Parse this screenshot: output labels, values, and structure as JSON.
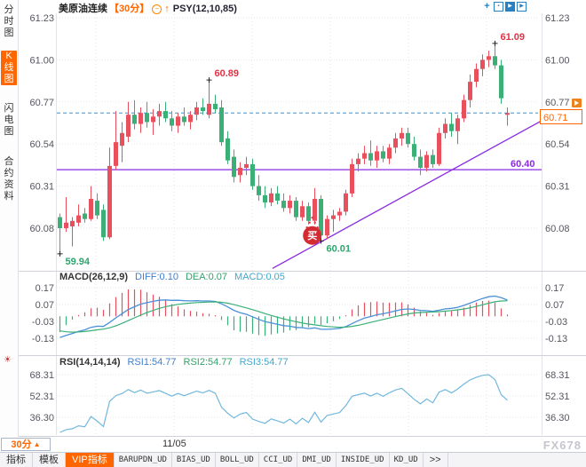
{
  "header": {
    "title": "美原油连续",
    "period": "【30分】",
    "compress_icon_glyph": "−",
    "arrow_glyph": "↑",
    "indicator_label": "PSY(12,10,85)",
    "window_icons": [
      {
        "name": "move-tool-icon",
        "glyph": "+",
        "style": "plain"
      },
      {
        "name": "window-layout-icon",
        "glyph": "▪",
        "style": "box"
      },
      {
        "name": "play-chart-icon",
        "glyph": "▶",
        "style": "filled"
      },
      {
        "name": "step-forward-icon",
        "glyph": "▶",
        "style": "box"
      }
    ]
  },
  "sidebar": {
    "items": [
      {
        "label": "分时图",
        "selected": false
      },
      {
        "label": "K线图",
        "selected": true
      },
      {
        "label": "闪电图",
        "selected": false
      },
      {
        "label": "合约资料",
        "selected": false
      }
    ]
  },
  "colors": {
    "up": "#e8505e",
    "down": "#3ab077",
    "accent": "#ff6600",
    "axis_text": "#55555f",
    "diff_line": "#4a90d9",
    "dea_line": "#3ab077",
    "rsi_line": "#72b8dc",
    "dashed_line": "#4090c8",
    "purple": "#8a2be2",
    "annotation_red": "#e03345",
    "annotation_green": "#2fa56e",
    "marker": "#222222",
    "grid": "#e7e7ee",
    "separator": "#cfd2d8",
    "blue_icon": "#2a7fc0",
    "watermark": "#c6c6ce"
  },
  "chart_data": {
    "type": "candlestick",
    "title": "美原油连续",
    "interval": "30分",
    "y_ticks": [
      "61.23",
      "61.00",
      "60.77",
      "60.54",
      "60.31",
      "60.08"
    ],
    "x_tick_label": "11/05",
    "candles": [
      [
        60.14,
        60.16,
        59.94,
        60.08
      ],
      [
        60.08,
        60.25,
        60.06,
        60.11
      ],
      [
        60.09,
        60.14,
        59.98,
        60.12
      ],
      [
        60.11,
        60.21,
        60.09,
        60.15
      ],
      [
        60.16,
        60.19,
        60.11,
        60.13
      ],
      [
        60.13,
        60.31,
        60.12,
        60.24
      ],
      [
        60.23,
        60.27,
        60.13,
        60.15
      ],
      [
        60.18,
        60.21,
        60.01,
        60.03
      ],
      [
        60.03,
        60.52,
        60.02,
        60.42
      ],
      [
        60.42,
        60.72,
        60.4,
        60.55
      ],
      [
        60.53,
        60.66,
        60.44,
        60.6
      ],
      [
        60.58,
        60.77,
        60.55,
        60.7
      ],
      [
        60.7,
        60.78,
        60.62,
        60.65
      ],
      [
        60.65,
        60.74,
        60.6,
        60.71
      ],
      [
        60.71,
        60.77,
        60.63,
        60.66
      ],
      [
        60.66,
        60.73,
        60.59,
        60.69
      ],
      [
        60.69,
        60.76,
        60.64,
        60.72
      ],
      [
        60.72,
        60.77,
        60.66,
        60.68
      ],
      [
        60.68,
        60.72,
        60.61,
        60.64
      ],
      [
        60.64,
        60.71,
        60.6,
        60.69
      ],
      [
        60.69,
        60.74,
        60.64,
        60.66
      ],
      [
        60.66,
        60.72,
        60.62,
        60.7
      ],
      [
        60.7,
        60.77,
        60.67,
        60.74
      ],
      [
        60.74,
        60.79,
        60.7,
        60.72
      ],
      [
        60.7,
        60.89,
        60.68,
        60.76
      ],
      [
        60.76,
        60.81,
        60.71,
        60.73
      ],
      [
        60.74,
        60.78,
        60.53,
        60.55
      ],
      [
        60.57,
        60.61,
        60.43,
        60.45
      ],
      [
        60.47,
        60.51,
        60.33,
        60.36
      ],
      [
        60.37,
        60.44,
        60.33,
        60.41
      ],
      [
        60.41,
        60.47,
        60.37,
        60.43
      ],
      [
        60.43,
        60.46,
        60.29,
        60.31
      ],
      [
        60.31,
        60.37,
        60.23,
        60.26
      ],
      [
        60.26,
        60.31,
        60.19,
        60.22
      ],
      [
        60.22,
        60.3,
        60.2,
        60.27
      ],
      [
        60.27,
        60.31,
        60.21,
        60.23
      ],
      [
        60.23,
        60.27,
        60.17,
        60.19
      ],
      [
        60.19,
        60.26,
        60.16,
        60.23
      ],
      [
        60.23,
        60.25,
        60.12,
        60.14
      ],
      [
        60.14,
        60.23,
        60.12,
        60.2
      ],
      [
        60.2,
        60.22,
        60.1,
        60.12
      ],
      [
        60.12,
        60.3,
        60.1,
        60.24
      ],
      [
        60.24,
        60.26,
        60.01,
        60.04
      ],
      [
        60.04,
        60.15,
        60.02,
        60.13
      ],
      [
        60.13,
        60.18,
        60.06,
        60.15
      ],
      [
        60.15,
        60.19,
        60.12,
        60.17
      ],
      [
        60.17,
        60.29,
        60.15,
        60.27
      ],
      [
        60.27,
        60.46,
        60.25,
        60.43
      ],
      [
        60.43,
        60.49,
        60.39,
        60.46
      ],
      [
        60.46,
        60.53,
        60.43,
        60.49
      ],
      [
        60.49,
        60.56,
        60.42,
        60.45
      ],
      [
        60.45,
        60.53,
        60.41,
        60.5
      ],
      [
        60.5,
        60.53,
        60.44,
        60.46
      ],
      [
        60.46,
        60.54,
        60.43,
        60.52
      ],
      [
        60.52,
        60.6,
        60.49,
        60.57
      ],
      [
        60.57,
        60.63,
        60.53,
        60.6
      ],
      [
        60.6,
        60.63,
        60.52,
        60.54
      ],
      [
        60.54,
        60.58,
        60.45,
        60.47
      ],
      [
        60.47,
        60.51,
        60.37,
        60.41
      ],
      [
        60.41,
        60.5,
        60.39,
        60.48
      ],
      [
        60.48,
        60.51,
        60.41,
        60.43
      ],
      [
        60.43,
        60.63,
        60.42,
        60.6
      ],
      [
        60.6,
        60.68,
        60.57,
        60.65
      ],
      [
        60.65,
        60.71,
        60.58,
        60.61
      ],
      [
        60.61,
        60.7,
        60.54,
        60.68
      ],
      [
        60.68,
        60.81,
        60.66,
        60.78
      ],
      [
        60.78,
        60.92,
        60.74,
        60.88
      ],
      [
        60.88,
        60.98,
        60.85,
        60.95
      ],
      [
        60.95,
        61.03,
        60.91,
        61.0
      ],
      [
        61.0,
        61.05,
        60.96,
        61.02
      ],
      [
        61.02,
        61.09,
        60.95,
        60.97
      ],
      [
        60.97,
        61.0,
        60.76,
        60.79
      ],
      [
        60.7,
        60.74,
        60.64,
        60.71
      ]
    ],
    "current_price": {
      "label": "60.71",
      "value": 60.71
    },
    "support_line": {
      "label": "60.40",
      "value": 60.4
    },
    "trend_line": {
      "from_index": 34.2,
      "from_price": 59.86,
      "to_index": 77.9,
      "to_price": 60.675
    },
    "annotations": [
      {
        "text": "60.89",
        "price": 60.89,
        "index": 24,
        "kind": "high"
      },
      {
        "text": "61.09",
        "price": 61.09,
        "index": 70,
        "kind": "high"
      },
      {
        "text": "59.94",
        "price": 59.94,
        "index": 0,
        "kind": "low"
      },
      {
        "text": "60.01",
        "price": 60.01,
        "index": 42,
        "kind": "low"
      }
    ],
    "buy_signal": {
      "text": "买",
      "index": 40.6,
      "price": 60.04
    },
    "macd_panel": {
      "title": "MACD(26,12,9)",
      "diff": "DIFF:0.10",
      "dea": "DEA:0.07",
      "macd": "MACD:0.05",
      "ticks": [
        "0.17",
        "0.07",
        "-0.03",
        "-0.13"
      ],
      "fast": 12,
      "slow": 26,
      "signal": 9
    },
    "rsi_panel": {
      "title": "RSI(14,14,14)",
      "rsi1": "RSI1:54.77",
      "rsi2": "RSI2:54.77",
      "rsi3": "RSI3:54.77",
      "ticks": [
        "68.31",
        "52.31",
        "36.30"
      ],
      "period": 14,
      "settings_icon": "☀"
    }
  },
  "bottom": {
    "period": "30分",
    "period_arrow": "▲",
    "date_label": "11/05",
    "watermark": "FX678",
    "toolbar": [
      {
        "label": "指标",
        "selected": false,
        "mono": false
      },
      {
        "label": "模板",
        "selected": false,
        "mono": false
      },
      {
        "label": "VIP指标",
        "selected": true,
        "mono": false
      },
      {
        "label": "BARUPDN_UD",
        "selected": false,
        "mono": true
      },
      {
        "label": "BIAS_UD",
        "selected": false,
        "mono": true
      },
      {
        "label": "BOLL_UD",
        "selected": false,
        "mono": true
      },
      {
        "label": "CCI_UD",
        "selected": false,
        "mono": true
      },
      {
        "label": "DMI_UD",
        "selected": false,
        "mono": true
      },
      {
        "label": "INSIDE_UD",
        "selected": false,
        "mono": true
      },
      {
        "label": "KD_UD",
        "selected": false,
        "mono": true
      },
      {
        "label": ">>",
        "selected": false,
        "mono": false
      }
    ]
  }
}
